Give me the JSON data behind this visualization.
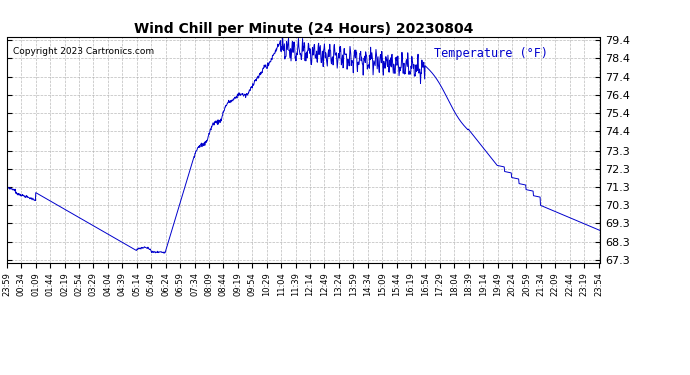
{
  "title": "Wind Chill per Minute (24 Hours) 20230804",
  "ylabel": "Temperature (°F)",
  "copyright_text": "Copyright 2023 Cartronics.com",
  "line_color": "#0000cc",
  "bg_color": "#ffffff",
  "grid_color": "#aaaaaa",
  "ylim": [
    67.3,
    79.4
  ],
  "yticks": [
    67.3,
    68.3,
    69.3,
    70.3,
    71.3,
    72.3,
    73.3,
    74.4,
    75.4,
    76.4,
    77.4,
    78.4,
    79.4
  ],
  "xtick_labels": [
    "23:59",
    "00:34",
    "01:09",
    "01:44",
    "02:19",
    "02:54",
    "03:29",
    "04:04",
    "04:39",
    "05:14",
    "05:49",
    "06:24",
    "06:59",
    "07:34",
    "08:09",
    "08:44",
    "09:19",
    "09:54",
    "10:29",
    "11:04",
    "11:39",
    "12:14",
    "12:49",
    "13:24",
    "13:59",
    "14:34",
    "15:09",
    "15:44",
    "16:19",
    "16:54",
    "17:29",
    "18:04",
    "18:39",
    "19:14",
    "19:49",
    "20:24",
    "20:59",
    "21:34",
    "22:09",
    "22:44",
    "23:19",
    "23:54"
  ]
}
